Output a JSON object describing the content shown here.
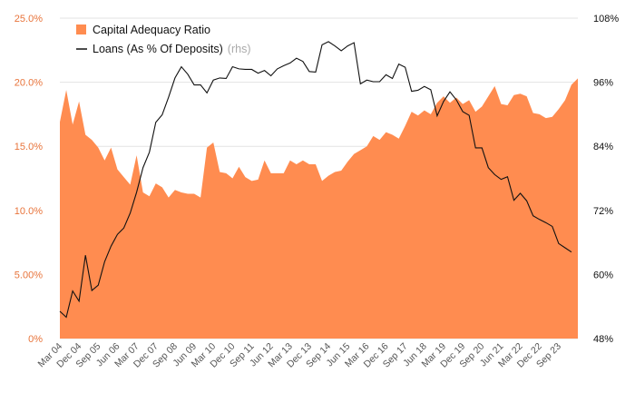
{
  "chart_data": {
    "type": "area",
    "y_left": {
      "ticks": [
        "0%",
        "5.00%",
        "10.0%",
        "15.0%",
        "20.0%",
        "25.0%"
      ],
      "ylim": [
        0,
        25
      ]
    },
    "y_right": {
      "ticks": [
        "48%",
        "60%",
        "72%",
        "84%",
        "96%",
        "108%"
      ],
      "ylim": [
        48,
        108
      ]
    },
    "x_ticks": [
      "Mar 04",
      "Dec 04",
      "Sep 05",
      "Jun 06",
      "Mar 07",
      "Dec 07",
      "Sep 08",
      "Jun 09",
      "Mar 10",
      "Dec 10",
      "Sep 11",
      "Jun 12",
      "Mar 13",
      "Dec 13",
      "Sep 14",
      "Jun 15",
      "Mar 16",
      "Dec 16",
      "Sep 17",
      "Jun 18",
      "Mar 19",
      "Dec 19",
      "Sep 20",
      "Jun 21",
      "Mar 22",
      "Dec 22",
      "Sep 23"
    ],
    "legend": [
      {
        "label": "Capital Adequacy Ratio",
        "color": "#ff8c50",
        "kind": "area"
      },
      {
        "label": "Loans (As % Of Deposits)",
        "note": "(rhs)",
        "color": "#111111",
        "kind": "line"
      }
    ],
    "series": [
      {
        "name": "Capital Adequacy Ratio",
        "axis": "left",
        "color": "#ff8c50",
        "values": [
          16.9,
          19.4,
          16.7,
          18.5,
          15.9,
          15.5,
          14.9,
          13.9,
          14.9,
          13.2,
          12.6,
          12.0,
          14.3,
          11.4,
          11.1,
          12.1,
          11.8,
          11.0,
          11.6,
          11.4,
          11.3,
          11.3,
          11.0,
          14.9,
          15.3,
          13.0,
          12.9,
          12.5,
          13.4,
          12.6,
          12.3,
          12.4,
          13.9,
          12.9,
          12.9,
          12.9,
          13.9,
          13.6,
          13.9,
          13.6,
          13.6,
          12.3,
          12.7,
          13.0,
          13.1,
          13.8,
          14.4,
          14.7,
          15.0,
          15.8,
          15.5,
          16.1,
          15.9,
          15.6,
          16.6,
          17.7,
          17.4,
          17.8,
          17.5,
          18.4,
          18.9,
          18.4,
          18.8,
          18.3,
          18.6,
          17.7,
          18.1,
          18.9,
          19.7,
          18.3,
          18.2,
          19.0,
          19.1,
          18.9,
          17.6,
          17.5,
          17.2,
          17.3,
          17.9,
          18.6,
          19.8,
          20.3
        ]
      },
      {
        "name": "Loans (As % Of Deposits)",
        "axis": "right",
        "color": "#111111",
        "values": [
          53.1,
          52.0,
          56.9,
          55.0,
          63.6,
          57.0,
          58.0,
          62.4,
          65.3,
          67.5,
          68.7,
          71.5,
          75.4,
          80.0,
          82.9,
          88.5,
          89.9,
          93.2,
          96.8,
          98.9,
          97.5,
          95.5,
          95.5,
          94.0,
          96.4,
          96.8,
          96.7,
          98.9,
          98.5,
          98.4,
          98.4,
          97.7,
          98.2,
          97.2,
          98.5,
          99.1,
          99.6,
          100.5,
          99.9,
          98.0,
          97.9,
          103.0,
          103.6,
          102.8,
          101.9,
          102.8,
          103.4,
          95.7,
          96.4,
          96.1,
          96.1,
          97.4,
          96.7,
          99.4,
          98.8,
          94.3,
          94.5,
          95.2,
          94.6,
          89.7,
          92.4,
          94.2,
          92.7,
          90.5,
          89.8,
          83.7,
          83.7,
          80.0,
          78.7,
          77.8,
          78.3,
          73.9,
          75.2,
          73.8,
          71.0,
          70.3,
          69.7,
          69.0,
          65.8,
          65.0,
          64.2
        ]
      }
    ]
  }
}
